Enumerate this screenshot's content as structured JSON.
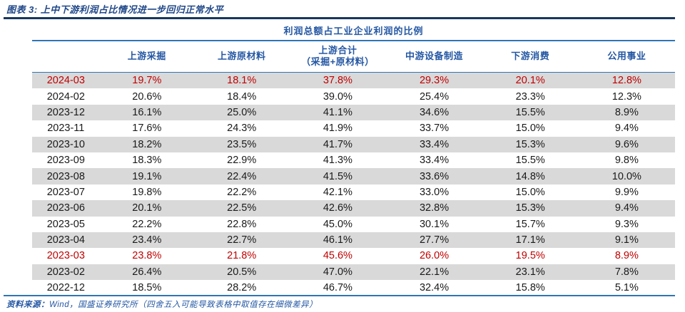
{
  "figure_title": "图表 3:  上中下游利润占比情况进一步回归正常水平",
  "source_note": {
    "prefix": "资料来源：",
    "text": "Wind，国盛证券研究所（四舍五入可能导致表格中取值存在细微差异）"
  },
  "colors": {
    "title_blue": "#1F4788",
    "header_blue": "#2457A3",
    "rule_dark_navy": "#17375E",
    "rule_blue": "#2E75B6",
    "highlight_red": "#C00000",
    "row_shade_gray": "#D9D9D9",
    "value_text": "#1a1a1a"
  },
  "chart_data": {
    "type": "table",
    "title": "利润总额占工业企业利润的比例",
    "columns": [
      {
        "label": "上游采掘",
        "sublabel": ""
      },
      {
        "label": "上游原材料",
        "sublabel": ""
      },
      {
        "label": "上游合计",
        "sublabel": "（采掘+原材料）"
      },
      {
        "label": "中游设备制造",
        "sublabel": ""
      },
      {
        "label": "下游消费",
        "sublabel": ""
      },
      {
        "label": "公用事业",
        "sublabel": ""
      }
    ],
    "rows": [
      {
        "date": "2024-03",
        "values": [
          "19.7%",
          "18.1%",
          "37.8%",
          "29.3%",
          "20.1%",
          "12.8%"
        ],
        "highlight": true
      },
      {
        "date": "2024-02",
        "values": [
          "20.6%",
          "18.4%",
          "39.0%",
          "25.4%",
          "23.3%",
          "12.3%"
        ],
        "highlight": false
      },
      {
        "date": "2023-12",
        "values": [
          "16.1%",
          "25.0%",
          "41.1%",
          "34.6%",
          "15.5%",
          "8.9%"
        ],
        "highlight": false
      },
      {
        "date": "2023-11",
        "values": [
          "17.6%",
          "24.3%",
          "41.9%",
          "33.7%",
          "15.0%",
          "9.4%"
        ],
        "highlight": false
      },
      {
        "date": "2023-10",
        "values": [
          "18.2%",
          "23.5%",
          "41.7%",
          "33.4%",
          "15.3%",
          "9.6%"
        ],
        "highlight": false
      },
      {
        "date": "2023-09",
        "values": [
          "18.3%",
          "22.9%",
          "41.3%",
          "33.4%",
          "15.5%",
          "9.8%"
        ],
        "highlight": false
      },
      {
        "date": "2023-08",
        "values": [
          "19.1%",
          "22.4%",
          "41.5%",
          "33.6%",
          "14.8%",
          "10.0%"
        ],
        "highlight": false
      },
      {
        "date": "2023-07",
        "values": [
          "19.8%",
          "22.2%",
          "42.1%",
          "33.0%",
          "15.0%",
          "9.9%"
        ],
        "highlight": false
      },
      {
        "date": "2023-06",
        "values": [
          "20.1%",
          "22.5%",
          "42.6%",
          "32.8%",
          "15.3%",
          "9.4%"
        ],
        "highlight": false
      },
      {
        "date": "2023-05",
        "values": [
          "22.2%",
          "22.8%",
          "45.0%",
          "30.1%",
          "15.7%",
          "9.3%"
        ],
        "highlight": false
      },
      {
        "date": "2023-04",
        "values": [
          "23.4%",
          "22.7%",
          "46.1%",
          "27.7%",
          "17.1%",
          "9.1%"
        ],
        "highlight": false
      },
      {
        "date": "2023-03",
        "values": [
          "23.8%",
          "21.8%",
          "45.6%",
          "26.0%",
          "19.5%",
          "8.9%"
        ],
        "highlight": true
      },
      {
        "date": "2023-02",
        "values": [
          "26.4%",
          "20.5%",
          "47.0%",
          "22.1%",
          "23.1%",
          "7.8%"
        ],
        "highlight": false
      },
      {
        "date": "2022-12",
        "values": [
          "18.5%",
          "28.2%",
          "46.7%",
          "32.4%",
          "15.8%",
          "5.1%"
        ],
        "highlight": false
      }
    ]
  }
}
